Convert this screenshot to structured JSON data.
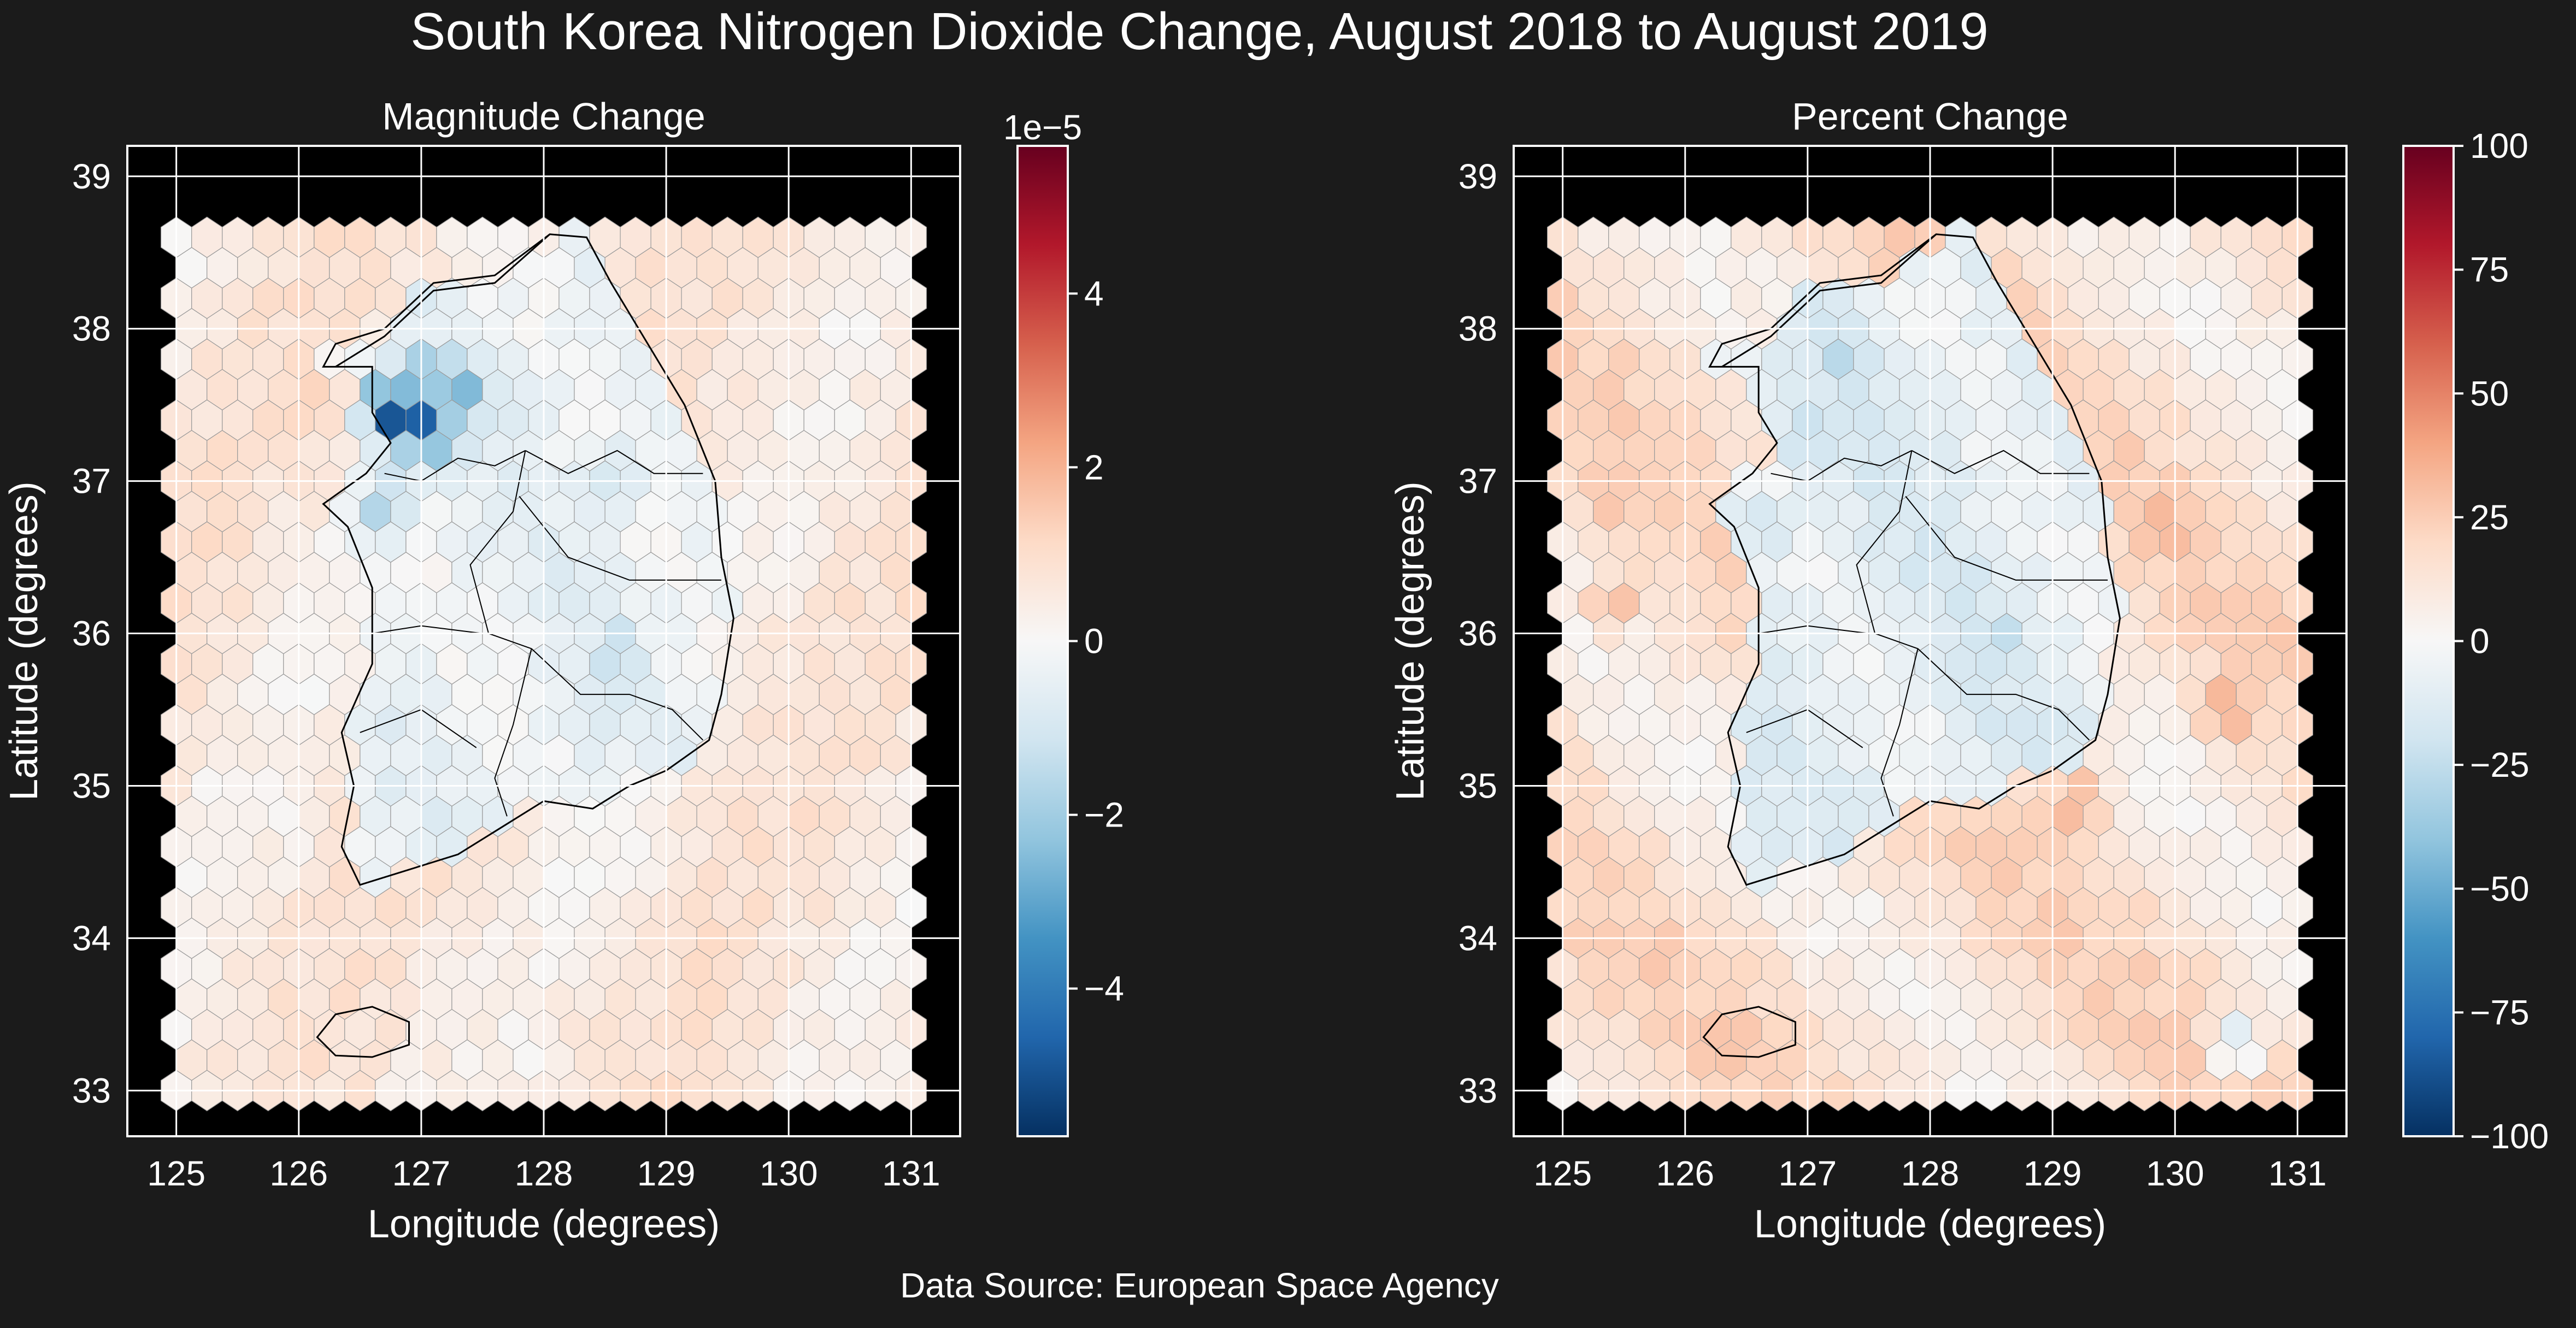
{
  "title": "South Korea Nitrogen Dioxide Change, August 2018 to August 2019",
  "source": "Data Source: European Space Agency",
  "colormap": [
    "#053061",
    "#2166ac",
    "#4393c3",
    "#92c5de",
    "#d1e5f0",
    "#f7f7f7",
    "#fddbc7",
    "#f4a582",
    "#d6604d",
    "#b2182b",
    "#67001f"
  ],
  "background": "#1b1b1b",
  "plot_background": "#000000",
  "chart_data": [
    {
      "type": "heatmap",
      "subtype": "hexbin-map",
      "title": "Magnitude Change",
      "xlabel": "Longitude (degrees)",
      "ylabel": "Latitude (degrees)",
      "xlim": [
        124.6,
        131.4
      ],
      "ylim": [
        32.7,
        39.2
      ],
      "xticks": [
        125,
        126,
        127,
        128,
        129,
        130,
        131
      ],
      "yticks": [
        33,
        34,
        35,
        36,
        37,
        38,
        39
      ],
      "grid": true,
      "colorbar": {
        "range": [
          -5.7,
          5.7
        ],
        "ticks": [
          4,
          2,
          0,
          -2,
          -4
        ],
        "tick_labels": [
          "4",
          "2",
          "0",
          "−2",
          "−4"
        ],
        "offset_label": "1e−5"
      },
      "hotspots": [
        {
          "lon": 126.75,
          "lat": 37.45,
          "value": -5.7
        },
        {
          "lon": 127.0,
          "lat": 37.35,
          "value": -5.5
        },
        {
          "lon": 127.3,
          "lat": 37.6,
          "value": -2.8
        },
        {
          "lon": 127.0,
          "lat": 37.7,
          "value": -2.3
        },
        {
          "lon": 126.85,
          "lat": 37.15,
          "value": -1.8
        },
        {
          "lon": 128.6,
          "lat": 35.9,
          "value": -1.5
        },
        {
          "lon": 126.7,
          "lat": 36.8,
          "value": -1.9
        },
        {
          "lon": 128.6,
          "lat": 37.05,
          "value": -1.2
        },
        {
          "lon": 126.1,
          "lat": 37.55,
          "value": 1.3
        }
      ]
    },
    {
      "type": "heatmap",
      "subtype": "hexbin-map",
      "title": "Percent Change",
      "xlabel": "Longitude (degrees)",
      "ylabel": "Latitude (degrees)",
      "xlim": [
        124.6,
        131.4
      ],
      "ylim": [
        32.7,
        39.2
      ],
      "xticks": [
        125,
        126,
        127,
        128,
        129,
        130,
        131
      ],
      "yticks": [
        33,
        34,
        35,
        36,
        37,
        38,
        39
      ],
      "grid": true,
      "colorbar": {
        "range": [
          -100,
          100
        ],
        "ticks": [
          100,
          75,
          50,
          25,
          0,
          -25,
          -50,
          -75,
          -100
        ],
        "tick_labels": [
          "100",
          "75",
          "50",
          "25",
          "0",
          "−25",
          "−50",
          "−75",
          "−100"
        ]
      },
      "hotspots": [
        {
          "lon": 127.3,
          "lat": 37.8,
          "value": -28
        },
        {
          "lon": 127.0,
          "lat": 37.3,
          "value": -26
        },
        {
          "lon": 128.6,
          "lat": 35.95,
          "value": -25
        },
        {
          "lon": 126.7,
          "lat": 36.7,
          "value": -20
        },
        {
          "lon": 129.2,
          "lat": 34.9,
          "value": 38
        },
        {
          "lon": 130.4,
          "lat": 35.5,
          "value": 40
        },
        {
          "lon": 129.9,
          "lat": 36.7,
          "value": 35
        },
        {
          "lon": 125.4,
          "lat": 36.2,
          "value": 33
        },
        {
          "lon": 125.4,
          "lat": 36.9,
          "value": 30
        },
        {
          "lon": 126.4,
          "lat": 33.3,
          "value": 28
        },
        {
          "lon": 130.5,
          "lat": 33.3,
          "value": -20
        }
      ]
    }
  ]
}
